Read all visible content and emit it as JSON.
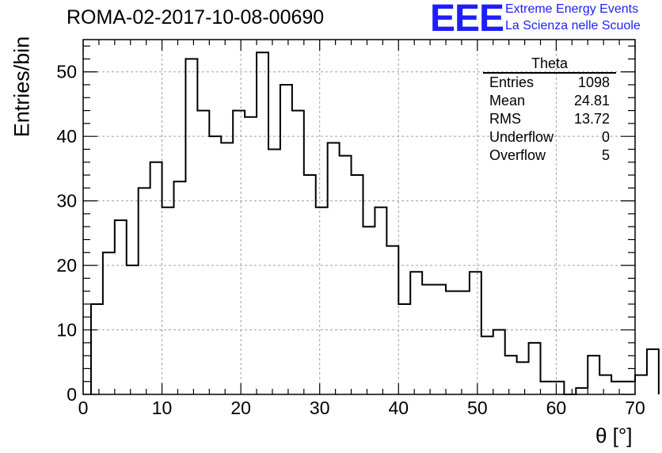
{
  "header": {
    "run_title": "ROMA-02-2017-10-08-00690",
    "logo": "EEE",
    "logo_line1": "Extreme Energy Events",
    "logo_line2": "La Scienza nelle Scuole",
    "logo_color": "#1d1dff"
  },
  "stats": {
    "title": "Theta",
    "rows": [
      {
        "label": "Entries",
        "value": "1098"
      },
      {
        "label": "Mean",
        "value": "24.81"
      },
      {
        "label": "RMS",
        "value": "13.72"
      },
      {
        "label": "Underflow",
        "value": "0"
      },
      {
        "label": "Overflow",
        "value": "5"
      }
    ]
  },
  "chart_data": {
    "type": "histogram",
    "xlabel": "θ [°]",
    "ylabel": "Entries/bin",
    "xlim": [
      0,
      70
    ],
    "ylim": [
      0,
      55
    ],
    "grid": true,
    "line_color": "#000000",
    "x_ticks": [
      0,
      10,
      20,
      30,
      40,
      50,
      60,
      70
    ],
    "y_ticks": [
      0,
      10,
      20,
      30,
      40,
      50
    ],
    "bin_start": 1.0,
    "bin_width": 1.5,
    "values": [
      14,
      22,
      27,
      20,
      32,
      36,
      29,
      33,
      52,
      44,
      40,
      39,
      44,
      43,
      53,
      38,
      48,
      44,
      34,
      29,
      39,
      37,
      34,
      26,
      29,
      23,
      14,
      19,
      17,
      17,
      16,
      16,
      19,
      9,
      10,
      6,
      5,
      8,
      2,
      2,
      0,
      1,
      6,
      3,
      2,
      2,
      3,
      7
    ]
  }
}
